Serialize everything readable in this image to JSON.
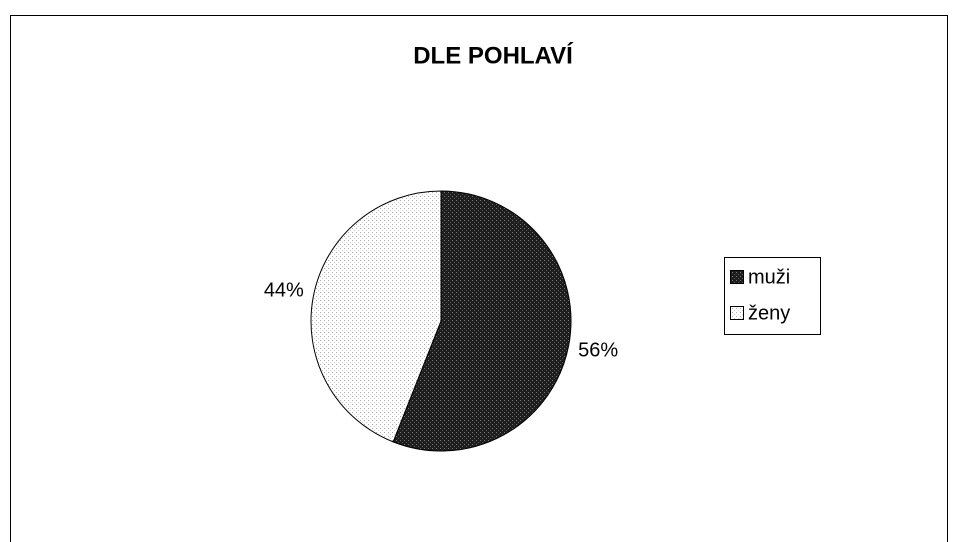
{
  "chart_data": {
    "type": "pie",
    "title": "DLE POHLAVÍ",
    "categories": [
      "muži",
      "ženy"
    ],
    "values": [
      56,
      44
    ],
    "value_labels": [
      "56%",
      "44%"
    ],
    "colors": [
      "#1e1e1e",
      "#ffffff"
    ],
    "legend": "right"
  }
}
